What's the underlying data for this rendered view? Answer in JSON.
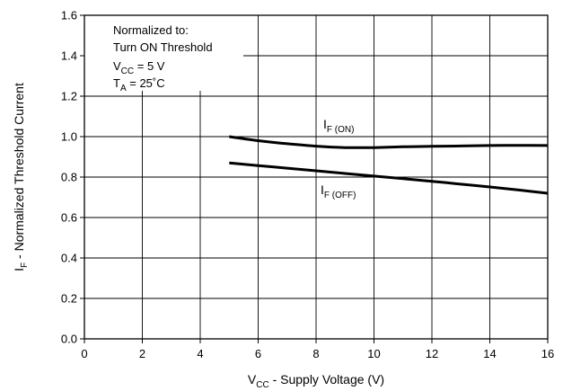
{
  "chart_data": {
    "type": "line",
    "xlabel": {
      "main": "V",
      "sub": "CC",
      "rest": " - Supply Voltage (V)"
    },
    "ylabel": {
      "main": "I",
      "sub": "F",
      "rest": " - Normalized Threshold Current"
    },
    "xlim": [
      0,
      16
    ],
    "ylim": [
      0,
      1.6
    ],
    "xticks": [
      0,
      2,
      4,
      6,
      8,
      10,
      12,
      14,
      16
    ],
    "xtick_labels": [
      "0",
      "2",
      "4",
      "6",
      "8",
      "10",
      "12",
      "14",
      "16"
    ],
    "yticks": [
      0,
      0.2,
      0.4,
      0.6,
      0.8,
      1.0,
      1.2,
      1.4,
      1.6
    ],
    "ytick_labels": [
      "0.0",
      "0.2",
      "0.4",
      "0.6",
      "0.8",
      "1.0",
      "1.2",
      "1.4",
      "1.6"
    ],
    "grid": true,
    "annotation": {
      "lines": [
        {
          "main": "Normalized to:",
          "sub": "",
          "rest": ""
        },
        {
          "main": "Turn ON Threshold",
          "sub": "",
          "rest": ""
        },
        {
          "main": "V",
          "sub": "CC",
          "rest": " = 5 V"
        },
        {
          "main": "T",
          "sub": "A",
          "rest": " = 25˚C"
        }
      ]
    },
    "series": [
      {
        "name": {
          "main": "I",
          "sub": "F (ON)"
        },
        "x": [
          5,
          6,
          7,
          8,
          9,
          10,
          11,
          12,
          13,
          14,
          15,
          16
        ],
        "y": [
          1.0,
          0.98,
          0.965,
          0.953,
          0.946,
          0.946,
          0.95,
          0.952,
          0.954,
          0.956,
          0.957,
          0.956
        ]
      },
      {
        "name": {
          "main": "I",
          "sub": "F (OFF)"
        },
        "x": [
          5,
          6,
          7,
          8,
          9,
          10,
          11,
          12,
          13,
          14,
          15,
          16
        ],
        "y": [
          0.87,
          0.857,
          0.844,
          0.831,
          0.818,
          0.805,
          0.792,
          0.779,
          0.765,
          0.751,
          0.736,
          0.72
        ]
      }
    ]
  }
}
